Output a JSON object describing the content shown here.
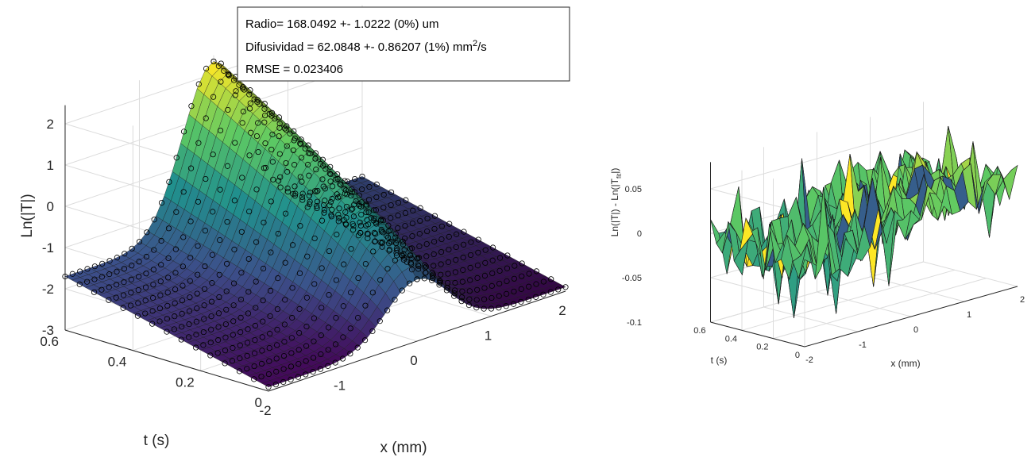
{
  "colormap": [
    "#440154",
    "#3b528b",
    "#21908d",
    "#5dc963",
    "#fde725"
  ],
  "annotation": {
    "line1": "Radio= 168.0492 +- 1.0222 (0%) um",
    "line2_prefix": "Difusividad = 62.0848 +- 0.86207 (1%) mm",
    "line2_sup": "2",
    "line2_suffix": "/s",
    "line3": "RMSE = 0.023406"
  },
  "chart_data": [
    {
      "type": "surface",
      "title": "",
      "xlabel": "x (mm)",
      "ylabel": "t (s)",
      "zlabel": "Ln(|T|)",
      "xlim": [
        -2,
        2
      ],
      "ylim": [
        0,
        0.6
      ],
      "zlim": [
        -3,
        2.3
      ],
      "x_ticks": [
        "-2",
        "-1",
        "0",
        "1",
        "2"
      ],
      "y_ticks": [
        "0",
        "0.2",
        "0.4",
        "0.6"
      ],
      "z_ticks": [
        "-3",
        "-2",
        "-1",
        "0",
        "1",
        "2"
      ],
      "model": "Gaussian ridge along t; peak Ln(|T|) ≈ 2.3 at x = 0, t = 0.6, decaying to ≈ -1.5 at t = 0; edges x = ±2 near -1.9 to -3",
      "peak_by_t": [
        [
          0,
          -1.5
        ],
        [
          0.1,
          -0.6
        ],
        [
          0.2,
          0.1
        ],
        [
          0.3,
          0.7
        ],
        [
          0.4,
          1.2
        ],
        [
          0.5,
          1.8
        ],
        [
          0.6,
          2.3
        ]
      ],
      "markers": "circles"
    },
    {
      "type": "surface",
      "title": "",
      "xlabel": "x (mm)",
      "ylabel": "t (s)",
      "zlabel_main": "Ln(|T|) - Ln(|T",
      "zlabel_sub": "fit",
      "zlabel_end": "|)",
      "xlim": [
        -2,
        2
      ],
      "ylim": [
        0,
        0.6
      ],
      "zlim": [
        -0.1,
        0.07
      ],
      "x_ticks": [
        "-2",
        "-1",
        "0",
        "1",
        "2"
      ],
      "y_ticks": [
        "0",
        "0.2",
        "0.4",
        "0.6"
      ],
      "z_ticks": [
        "-0.1",
        "-0.05",
        "0",
        "0.05"
      ],
      "model": "Residual noise surface, values roughly between -0.1 and 0.07"
    }
  ]
}
